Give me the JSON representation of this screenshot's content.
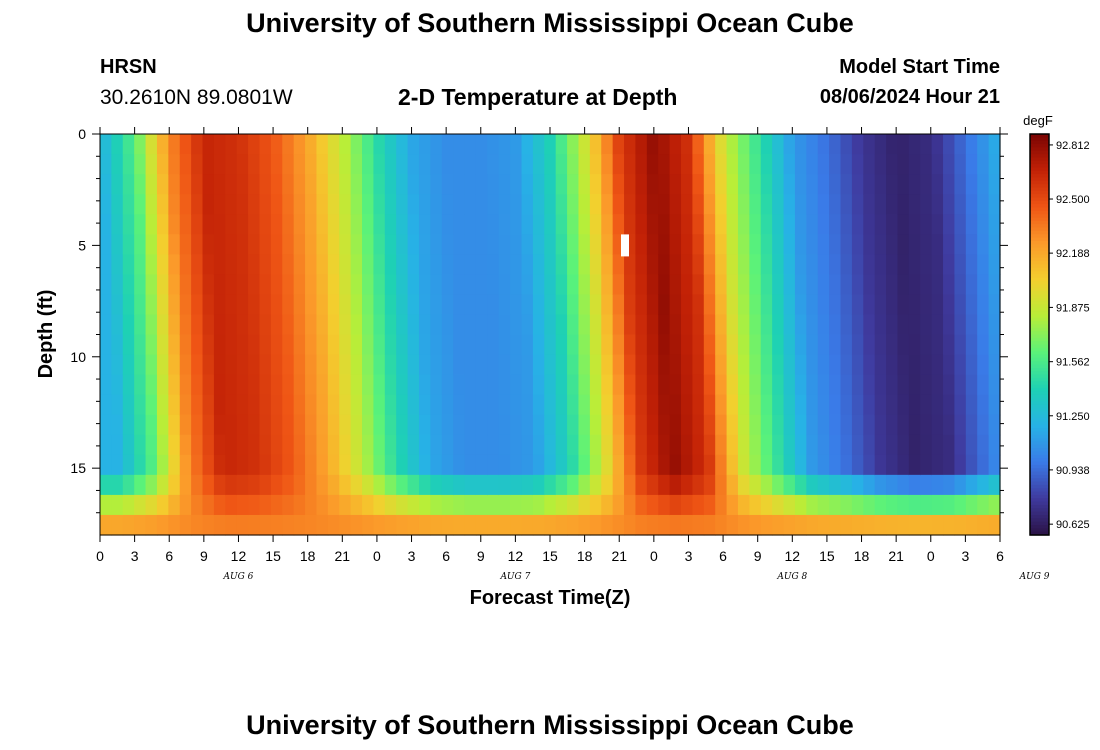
{
  "header": {
    "title": "University of Southern Mississippi Ocean Cube",
    "station": "HRSN",
    "coords": "30.2610N  89.0801W",
    "model_label": "Model Start Time",
    "model_time": "08/06/2024 Hour 21"
  },
  "footer": {
    "title": "University of Southern Mississippi Ocean Cube"
  },
  "colors": {
    "scale": [
      "#2a1245",
      "#3f3a9e",
      "#3a7be8",
      "#27b2e6",
      "#1ed1b4",
      "#5af27a",
      "#b8ee38",
      "#f3cf2e",
      "#fb9a2a",
      "#ef5515",
      "#c22106",
      "#7a0403"
    ]
  },
  "chart_data": {
    "type": "heatmap",
    "title": "2-D Temperature at Depth",
    "xlabel": "Forecast Time(Z)",
    "ylabel": "Depth (ft)",
    "x_ticks": [
      "0",
      "3",
      "6",
      "9",
      "12",
      "15",
      "18",
      "21",
      "0",
      "3",
      "6",
      "9",
      "12",
      "15",
      "18",
      "21",
      "0",
      "3",
      "6",
      "9",
      "12",
      "15",
      "18",
      "21",
      "0",
      "3",
      "6"
    ],
    "date_labels": [
      {
        "label": "AUG 6",
        "hour": 12
      },
      {
        "label": "AUG 7",
        "hour": 36
      },
      {
        "label": "AUG 8",
        "hour": 60
      },
      {
        "label": "AUG 9",
        "hour": 81
      }
    ],
    "y_ticks": [
      "0",
      "5",
      "10",
      "15"
    ],
    "xlim_hours": [
      0,
      78
    ],
    "ylim_ft": [
      0,
      18
    ],
    "colorbar": {
      "unit": "degF",
      "min": 90.5625,
      "max": 92.875,
      "ticks": [
        "92.812",
        "92.500",
        "92.188",
        "91.875",
        "91.562",
        "91.250",
        "90.938",
        "90.625"
      ]
    },
    "surface_temp_hours": [
      0,
      3,
      6,
      9,
      12,
      15,
      18,
      21,
      24,
      27,
      30,
      33,
      36,
      39,
      42,
      45,
      48,
      51,
      54,
      57,
      60,
      63,
      66,
      69,
      72,
      75,
      78
    ],
    "surface_temp_values": [
      91.2,
      91.6,
      92.3,
      92.65,
      92.6,
      92.45,
      92.2,
      91.85,
      91.45,
      91.15,
      91.05,
      91.05,
      91.1,
      91.4,
      91.9,
      92.55,
      92.8,
      92.6,
      91.9,
      91.5,
      91.1,
      90.95,
      90.75,
      90.65,
      90.7,
      90.95,
      91.2
    ],
    "bottom_temp_value": 92.3,
    "marker": {
      "hour": 45.5,
      "depth_ft": 5
    }
  }
}
